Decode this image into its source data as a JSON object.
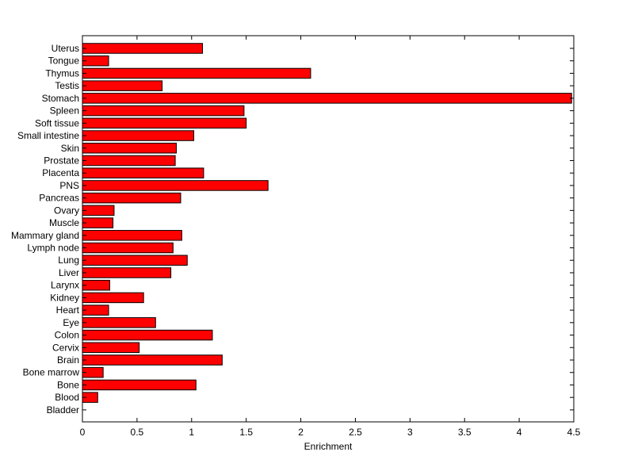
{
  "chart_data": {
    "type": "bar",
    "orientation": "horizontal",
    "title": "",
    "xlabel": "Enrichment",
    "ylabel": "",
    "xlim": [
      0,
      4.5
    ],
    "xticks": [
      "0",
      "0.5",
      "1",
      "1.5",
      "2",
      "2.5",
      "3",
      "3.5",
      "4",
      "4.5"
    ],
    "grid": false,
    "bar_color": "#ff0000",
    "categories": [
      "Uterus",
      "Tongue",
      "Thymus",
      "Testis",
      "Stomach",
      "Spleen",
      "Soft tissue",
      "Small intestine",
      "Skin",
      "Prostate",
      "Placenta",
      "PNS",
      "Pancreas",
      "Ovary",
      "Muscle",
      "Mammary gland",
      "Lymph node",
      "Lung",
      "Liver",
      "Larynx",
      "Kidney",
      "Heart",
      "Eye",
      "Colon",
      "Cervix",
      "Brain",
      "Bone marrow",
      "Bone",
      "Blood",
      "Bladder"
    ],
    "values": [
      1.1,
      0.24,
      2.09,
      0.73,
      4.48,
      1.48,
      1.5,
      1.02,
      0.86,
      0.85,
      1.11,
      1.7,
      0.9,
      0.29,
      0.28,
      0.91,
      0.83,
      0.96,
      0.81,
      0.25,
      0.56,
      0.24,
      0.67,
      1.19,
      0.52,
      1.28,
      0.19,
      1.04,
      0.14,
      0
    ]
  }
}
